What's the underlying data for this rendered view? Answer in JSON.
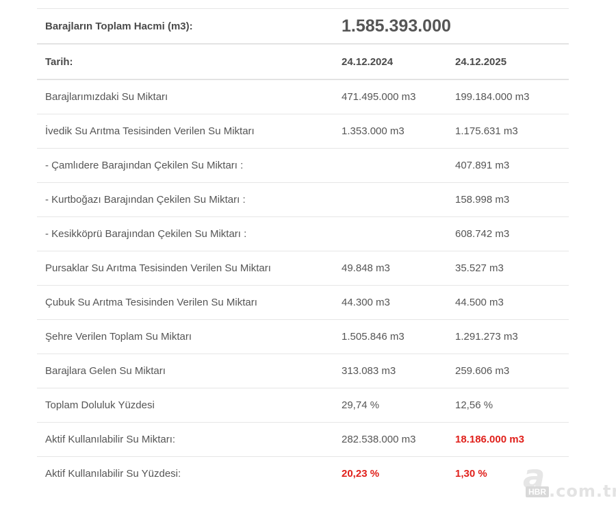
{
  "total": {
    "label": "Barajların Toplam Hacmi (m3):",
    "value": "1.585.393.000"
  },
  "date_row": {
    "label": "Tarih:",
    "col1": "24.12.2024",
    "col2": "24.12.2025"
  },
  "rows": [
    {
      "label": "Barajlarımızdaki Su Miktarı",
      "v1": "471.495.000 m3",
      "v2": "199.184.000 m3"
    },
    {
      "label": "İvedik Su Arıtma Tesisinden Verilen Su Miktarı",
      "v1": "1.353.000 m3",
      "v2": "1.175.631 m3"
    },
    {
      "label": "- Çamlıdere Barajından Çekilen Su Miktarı :",
      "v1": "",
      "v2": "407.891 m3"
    },
    {
      "label": "- Kurtboğazı Barajından Çekilen Su Miktarı :",
      "v1": "",
      "v2": "158.998 m3"
    },
    {
      "label": "- Kesikköprü Barajından Çekilen Su Miktarı :",
      "v1": "",
      "v2": "608.742 m3"
    },
    {
      "label": "Pursaklar Su Arıtma Tesisinden Verilen Su Miktarı",
      "v1": "49.848 m3",
      "v2": "35.527 m3"
    },
    {
      "label": "Çubuk Su Arıtma Tesisinden Verilen Su Miktarı",
      "v1": "44.300 m3",
      "v2": "44.500 m3"
    },
    {
      "label": "Şehre Verilen Toplam Su Miktarı",
      "v1": "1.505.846 m3",
      "v2": "1.291.273 m3"
    },
    {
      "label": "Barajlara Gelen Su Miktarı",
      "v1": "313.083 m3",
      "v2": "259.606 m3"
    },
    {
      "label": "Toplam Doluluk Yüzdesi",
      "v1": "29,74 %",
      "v2": "12,56 %"
    },
    {
      "label": "Aktif Kullanılabilir Su Miktarı:",
      "v1": "282.538.000 m3",
      "v2": "18.186.000 m3"
    },
    {
      "label": "Aktif Kullanılabilir Su Yüzdesi:",
      "v1": "20,23 %",
      "v2": "1,30 %"
    }
  ],
  "watermark": {
    "letter": "a",
    "badge": "HBR",
    "domain": ".com.tr"
  },
  "colors": {
    "highlight": "#e0201b",
    "text": "#555555",
    "border": "#e6e6e6"
  }
}
